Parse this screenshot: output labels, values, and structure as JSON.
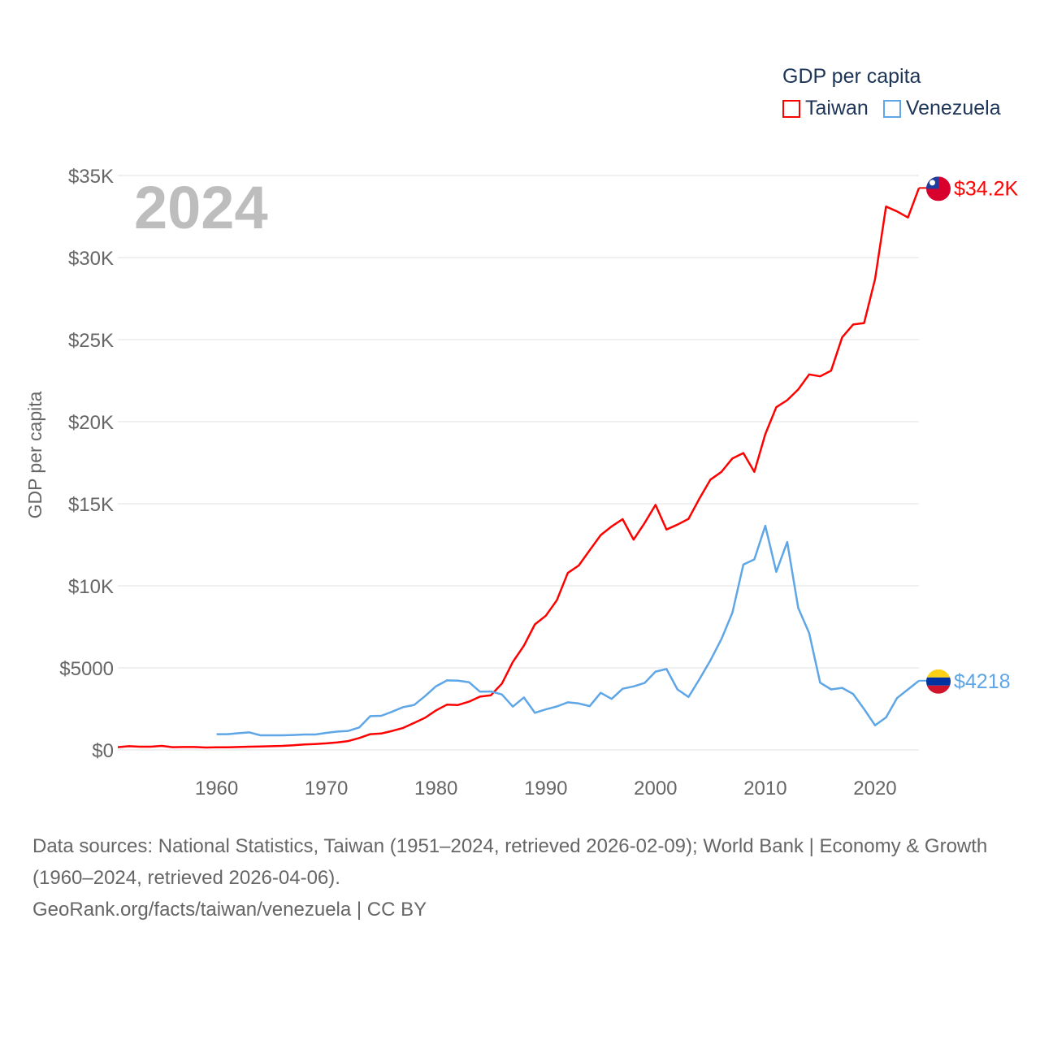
{
  "chart_data": {
    "type": "line",
    "title": "GDP per capita",
    "ylabel": "GDP per capita",
    "xlabel": "",
    "year_overlay": "2024",
    "ylim": [
      0,
      35000
    ],
    "xlim": [
      1951,
      2024
    ],
    "grid": true,
    "legend_placement": "top-right",
    "y_ticks": [
      0,
      5000,
      10000,
      15000,
      20000,
      25000,
      30000,
      35000
    ],
    "y_tick_labels": [
      "$0",
      "$5000",
      "$10K",
      "$15K",
      "$20K",
      "$25K",
      "$30K",
      "$35K"
    ],
    "x_ticks": [
      1960,
      1970,
      1980,
      1990,
      2000,
      2010,
      2020
    ],
    "x_tick_labels": [
      "1960",
      "1970",
      "1980",
      "1990",
      "2000",
      "2010",
      "2020"
    ],
    "series": [
      {
        "name": "Taiwan",
        "color": "#ff0000",
        "end_label": "$34.2K",
        "start_year": 1951,
        "values": [
          170,
          230,
          200,
          200,
          250,
          170,
          180,
          180,
          150,
          160,
          160,
          180,
          200,
          210,
          230,
          250,
          280,
          330,
          360,
          400,
          460,
          540,
          730,
          960,
          1000,
          1160,
          1340,
          1650,
          1960,
          2410,
          2760,
          2740,
          2940,
          3250,
          3330,
          4040,
          5360,
          6350,
          7650,
          8180,
          9120,
          10780,
          11240,
          12170,
          13090,
          13620,
          14060,
          12810,
          13820,
          14930,
          13430,
          13730,
          14080,
          15320,
          16470,
          16940,
          17760,
          18090,
          16940,
          19240,
          20880,
          21310,
          21960,
          22880,
          22760,
          23110,
          25140,
          25920,
          26010,
          28690,
          33110,
          32810,
          32440,
          34240
        ]
      },
      {
        "name": "Venezuela",
        "color": "#5ea6e6",
        "end_label": "$4218",
        "start_year": 1960,
        "values": [
          960,
          960,
          1020,
          1070,
          890,
          890,
          890,
          910,
          940,
          940,
          1040,
          1120,
          1160,
          1370,
          2060,
          2080,
          2330,
          2610,
          2740,
          3280,
          3880,
          4240,
          4220,
          4130,
          3550,
          3560,
          3380,
          2640,
          3200,
          2260,
          2470,
          2650,
          2900,
          2830,
          2670,
          3480,
          3110,
          3730,
          3870,
          4080,
          4770,
          4930,
          3690,
          3230,
          4310,
          5460,
          6750,
          8360,
          11290,
          11610,
          13660,
          10850,
          12670,
          8660,
          7120,
          4100,
          3690,
          3780,
          3410,
          2490,
          1500,
          1980,
          3160,
          3690,
          4218
        ]
      }
    ]
  },
  "legend": {
    "title": "GDP per capita",
    "items": [
      "Taiwan",
      "Venezuela"
    ]
  },
  "footer": {
    "sources": "Data sources: National Statistics, Taiwan (1951–2024, retrieved 2026-02-09); World Bank | Economy & Growth (1960–2024, retrieved 2026-04-06).",
    "credit": "GeoRank.org/facts/taiwan/venezuela | CC BY"
  }
}
